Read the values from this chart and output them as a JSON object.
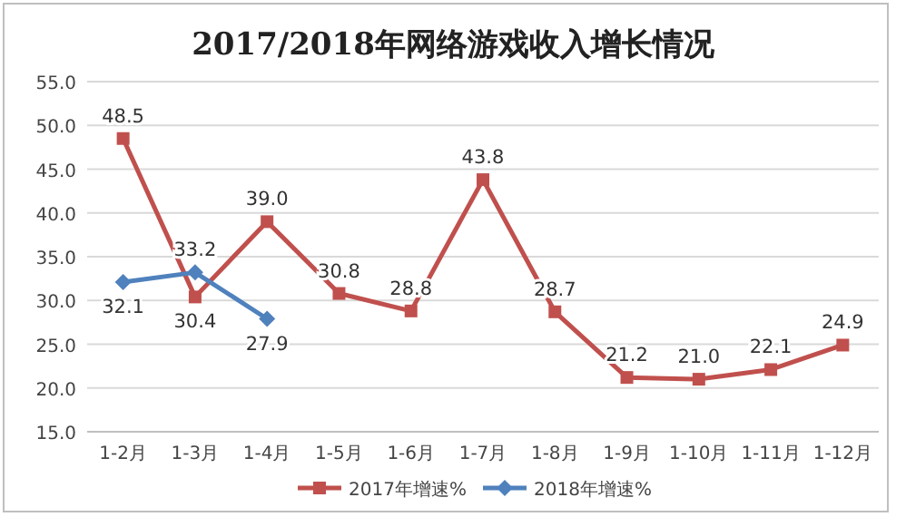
{
  "chart_data": {
    "type": "line",
    "title": "2017/2018年网络游戏收入增长情况",
    "categories": [
      "1-2月",
      "1-3月",
      "1-4月",
      "1-5月",
      "1-6月",
      "1-7月",
      "1-8月",
      "1-9月",
      "1-10月",
      "1-11月",
      "1-12月"
    ],
    "series": [
      {
        "name": "2017年增速%",
        "color": "#c0504d",
        "marker": "square",
        "values": [
          48.5,
          30.4,
          39.0,
          30.8,
          28.8,
          43.8,
          28.7,
          21.2,
          21.0,
          22.1,
          24.9
        ],
        "value_labels": [
          "48.5",
          "30.4",
          "39.0",
          "30.8",
          "28.8",
          "43.8",
          "28.7",
          "21.2",
          "21.0",
          "22.1",
          "24.9"
        ]
      },
      {
        "name": "2018年增速%",
        "color": "#4f81bd",
        "marker": "diamond",
        "values": [
          32.1,
          33.2,
          27.9,
          null,
          null,
          null,
          null,
          null,
          null,
          null,
          null
        ],
        "value_labels": [
          "32.1",
          "33.2",
          "27.9",
          null,
          null,
          null,
          null,
          null,
          null,
          null,
          null
        ]
      }
    ],
    "ylim": [
      15,
      55
    ],
    "yticks": [
      {
        "value": 15,
        "label": "15.0"
      },
      {
        "value": 20,
        "label": "20.0"
      },
      {
        "value": 25,
        "label": "25.0"
      },
      {
        "value": 30,
        "label": "30.0"
      },
      {
        "value": 35,
        "label": "35.0"
      },
      {
        "value": 40,
        "label": "40.0"
      },
      {
        "value": 45,
        "label": "45.0"
      },
      {
        "value": 50,
        "label": "50.0"
      },
      {
        "value": 55,
        "label": "55.0"
      }
    ],
    "grid": "y",
    "legend": "bottom"
  }
}
